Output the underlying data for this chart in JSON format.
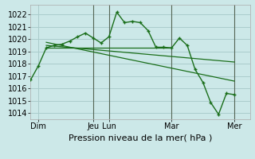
{
  "background_color": "#cce8e8",
  "grid_color": "#aacccc",
  "line_color": "#1a6e1a",
  "xlabel": "Pression niveau de la mer( hPa )",
  "ylim": [
    1013.5,
    1022.8
  ],
  "yticks": [
    1014,
    1015,
    1016,
    1017,
    1018,
    1019,
    1020,
    1021,
    1022
  ],
  "total_hours": 168,
  "series1_x": [
    0,
    6,
    12,
    18,
    24,
    30,
    36,
    42,
    48,
    54,
    60,
    66,
    72,
    78,
    84,
    90,
    96,
    102,
    108,
    114,
    120,
    126,
    132,
    138,
    144,
    150,
    156
  ],
  "series1_y": [
    1016.7,
    1017.85,
    1019.3,
    1019.5,
    1019.6,
    1019.85,
    1020.2,
    1020.5,
    1020.1,
    1019.7,
    1020.2,
    1022.2,
    1021.35,
    1021.45,
    1021.35,
    1020.7,
    1019.35,
    1019.35,
    1019.3,
    1020.1,
    1019.5,
    1017.55,
    1016.5,
    1014.85,
    1013.9,
    1015.6,
    1015.5
  ],
  "series2_x": [
    12,
    108
  ],
  "series2_y": [
    1019.3,
    1019.3
  ],
  "series3_x": [
    12,
    156
  ],
  "series3_y": [
    1019.5,
    1018.15
  ],
  "series4_x": [
    12,
    156
  ],
  "series4_y": [
    1019.75,
    1016.6
  ],
  "vline_positions": [
    48,
    60,
    108,
    156
  ],
  "xtick_positions": [
    6,
    48,
    60,
    108,
    156
  ],
  "xtick_labels": [
    "Dim",
    "Jeu",
    "Lun",
    "Mar",
    "Mer"
  ],
  "xlabel_fontsize": 8,
  "tick_fontsize": 7
}
